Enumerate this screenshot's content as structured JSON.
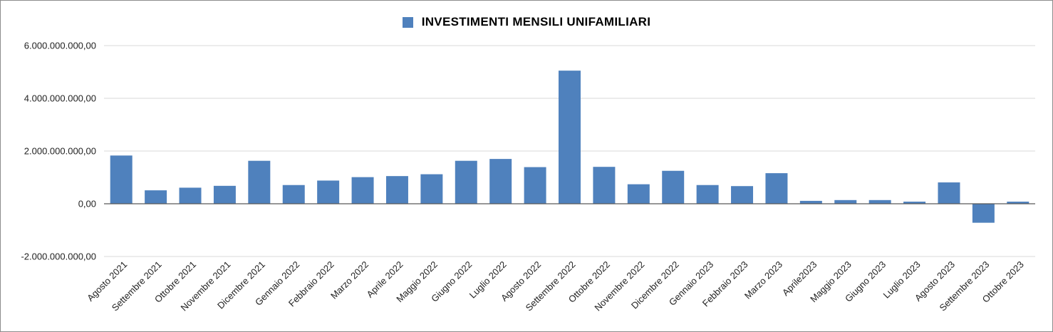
{
  "chart_data": {
    "type": "bar",
    "title": "",
    "xlabel": "",
    "ylabel": "",
    "legend": {
      "label": "INVESTIMENTI MENSILI UNIFAMILIARI",
      "position": "top-center"
    },
    "color": "#4f81bd",
    "grid": true,
    "ylim": [
      -2000000000,
      6000000000
    ],
    "yticks": [
      {
        "value": 6000000000,
        "label": "6.000.000.000,00"
      },
      {
        "value": 4000000000,
        "label": "4.000.000.000,00"
      },
      {
        "value": 2000000000,
        "label": "2.000.000.000,00"
      },
      {
        "value": 0,
        "label": "0,00"
      },
      {
        "value": -2000000000,
        "label": "-2.000.000.000,00"
      }
    ],
    "categories": [
      "Agosto 2021",
      "Settembre 2021",
      "Ottobre 2021",
      "Novembre 2021",
      "Dicembre 2021",
      "Gennaio 2022",
      "Febbraio 2022",
      "Marzo 2022",
      "Aprile 2022",
      "Maggio 2022",
      "Giugno 2022",
      "Luglio 2022",
      "Agosto 2022",
      "Settembre 2022",
      "Ottobre 2022",
      "Novembre 2022",
      "Dicembre 2022",
      "Gennaio 2023",
      "Febbraio 2023",
      "Marzo 2023",
      "Aprile2023",
      "Maggio 2023",
      "Giugno 2023",
      "Luglio 2023",
      "Agosto 2023",
      "Settembre 2023",
      "Ottobre 2023"
    ],
    "values": [
      1830000000,
      510000000,
      610000000,
      680000000,
      1630000000,
      710000000,
      880000000,
      1010000000,
      1050000000,
      1120000000,
      1630000000,
      1700000000,
      1390000000,
      5050000000,
      1400000000,
      740000000,
      1250000000,
      710000000,
      670000000,
      1160000000,
      110000000,
      140000000,
      140000000,
      80000000,
      810000000,
      -720000000,
      80000000
    ]
  }
}
